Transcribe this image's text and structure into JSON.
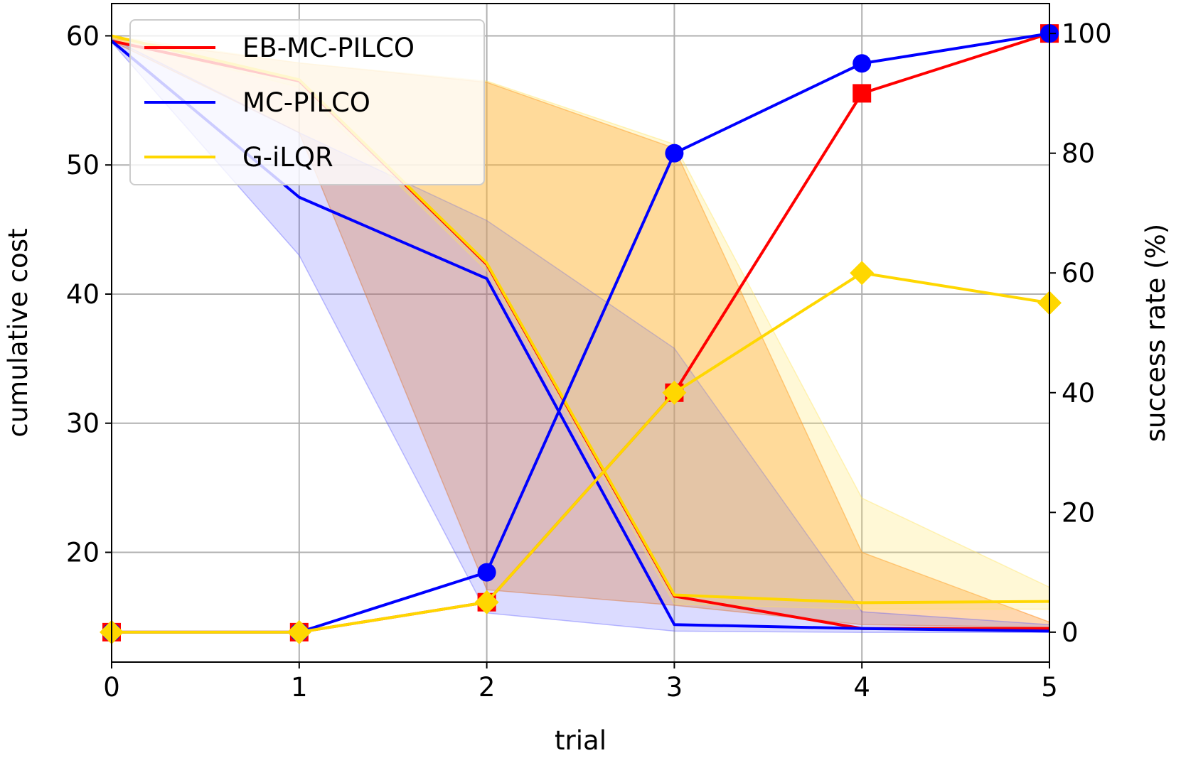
{
  "chart_data": {
    "type": "line",
    "xlabel": "trial",
    "ylabel": "cumulative cost",
    "y2label": "success rate (%)",
    "x": [
      0,
      1,
      2,
      3,
      4,
      5
    ],
    "xlim": [
      0,
      5
    ],
    "ylim": [
      11.5,
      62.5
    ],
    "y2lim": [
      -5,
      105
    ],
    "xticks": [
      0,
      1,
      2,
      3,
      4,
      5
    ],
    "yticks": [
      20,
      30,
      40,
      50,
      60
    ],
    "y2ticks": [
      0,
      20,
      40,
      60,
      80,
      100
    ],
    "grid": true,
    "legend_position": "top-left",
    "colors": {
      "EB-MC-PILCO": "#ff0000",
      "MC-PILCO": "#0000ff",
      "G-iLQR": "#ffd700",
      "EB-MC-PILCO_band": "#ff8c1a",
      "MC-PILCO_band": "#4d4dff",
      "G-iLQR_band": "#ffe45c"
    },
    "series": [
      {
        "name": "EB-MC-PILCO",
        "axis": "left",
        "values": [
          59.6,
          56.5,
          42.3,
          16.6,
          14.1,
          14.1
        ]
      },
      {
        "name": "MC-PILCO",
        "axis": "left",
        "values": [
          59.6,
          47.5,
          41.2,
          14.4,
          14.1,
          13.9
        ]
      },
      {
        "name": "G-iLQR",
        "axis": "left",
        "values": [
          60.0,
          56.6,
          42.4,
          16.7,
          16.1,
          16.2
        ]
      }
    ],
    "bands": [
      {
        "series": "EB-MC-PILCO",
        "lower": [
          59.6,
          52.5,
          17.1,
          15.9,
          14.4,
          14.2
        ],
        "upper": [
          59.8,
          57.9,
          56.4,
          51.3,
          20.0,
          14.6
        ],
        "alpha": 0.35
      },
      {
        "series": "MC-PILCO",
        "lower": [
          59.5,
          43.0,
          15.3,
          13.9,
          13.8,
          13.8
        ],
        "upper": [
          59.8,
          52.5,
          45.7,
          35.8,
          15.4,
          14.4
        ],
        "alpha": 0.2
      },
      {
        "series": "G-iLQR",
        "lower": [
          59.8,
          56.0,
          41.8,
          16.0,
          15.6,
          15.6
        ],
        "upper": [
          60.0,
          57.9,
          56.5,
          51.6,
          24.2,
          17.3
        ],
        "alpha": 0.25
      }
    ],
    "success_rate": [
      {
        "series": "EB-MC-PILCO",
        "marker": "square",
        "values": [
          0,
          0,
          5,
          40,
          90,
          100
        ]
      },
      {
        "series": "MC-PILCO",
        "marker": "circle",
        "values": [
          0,
          0,
          10,
          80,
          95,
          100
        ]
      },
      {
        "series": "G-iLQR",
        "marker": "diamond",
        "values": [
          0,
          0,
          5,
          40,
          60,
          55
        ]
      }
    ]
  }
}
